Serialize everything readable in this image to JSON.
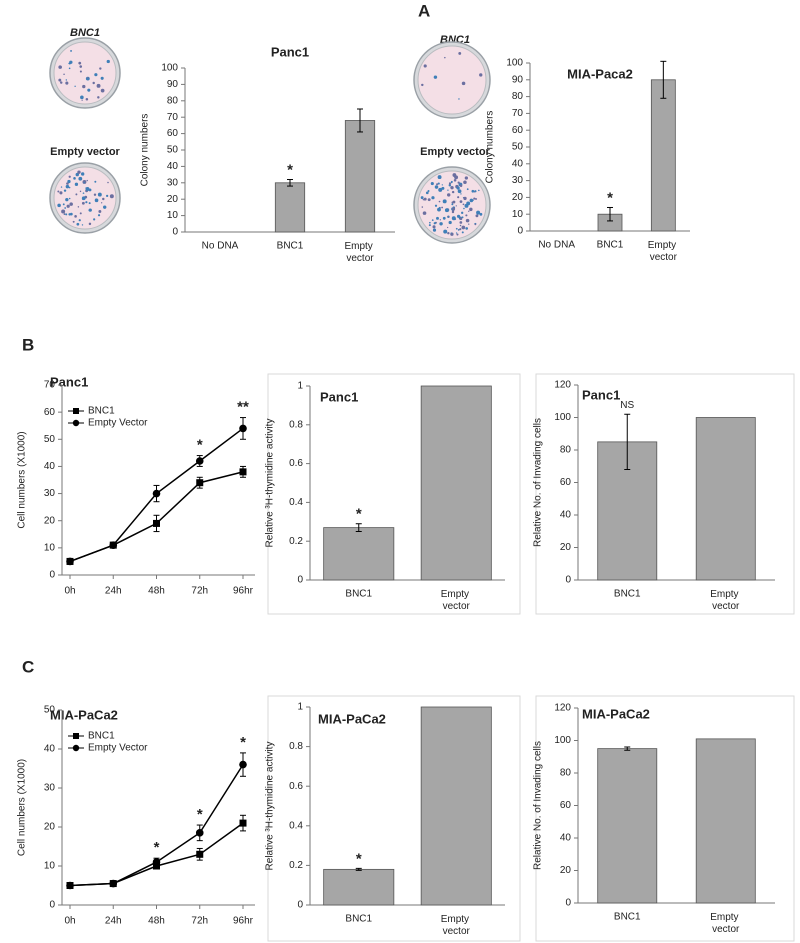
{
  "panels": [
    "A",
    "B",
    "C"
  ],
  "dish_labels": [
    "BNC1",
    "Empty vector",
    "BNC1",
    "Empty vector"
  ],
  "chart_data": [
    {
      "type": "bar",
      "title": "Panc1",
      "y_label": "Colony numbers",
      "categories": [
        "No DNA",
        "BNC1",
        "Empty vector"
      ],
      "values": [
        0,
        30,
        68
      ],
      "errors": [
        0,
        2,
        7
      ],
      "annotations": [
        null,
        "*",
        null
      ],
      "color": "#a6a6a6",
      "ylim": [
        0,
        100
      ],
      "yticks": [
        0,
        10,
        20,
        30,
        40,
        50,
        60,
        70,
        80,
        90,
        100
      ]
    },
    {
      "type": "bar",
      "title": "MIA-Paca2",
      "y_label": "Colony numbers",
      "categories": [
        "No DNA",
        "BNC1",
        "Empty vector"
      ],
      "values": [
        0,
        10,
        90
      ],
      "errors": [
        0,
        4,
        11
      ],
      "annotations": [
        null,
        "*",
        null
      ],
      "color": "#a6a6a6",
      "ylim": [
        0,
        100
      ],
      "yticks": [
        0,
        10,
        20,
        30,
        40,
        50,
        60,
        70,
        80,
        90,
        100
      ]
    },
    {
      "type": "line",
      "title": "Panc1",
      "y_label": "Cell numbers (X1000)",
      "categories": [
        "0h",
        "24h",
        "48h",
        "72h",
        "96hr"
      ],
      "series": [
        {
          "name": "BNC1",
          "color": "#000000",
          "marker": "square",
          "values": [
            5,
            11,
            19,
            34,
            38
          ],
          "errors": [
            1,
            1,
            3,
            2,
            2
          ]
        },
        {
          "name": "Empty Vector",
          "color": "#000000",
          "marker": "circle",
          "values": [
            5,
            11,
            30,
            42,
            54
          ],
          "errors": [
            1,
            1,
            3,
            2,
            4
          ]
        }
      ],
      "annotations": [
        null,
        null,
        null,
        "*",
        "**"
      ],
      "ylim": [
        0,
        70
      ],
      "yticks": [
        0,
        10,
        20,
        30,
        40,
        50,
        60,
        70
      ]
    },
    {
      "type": "bar",
      "title": "Panc1",
      "y_label": "Relative ³H-thymidine activity",
      "categories": [
        "BNC1",
        "Empty vector"
      ],
      "values": [
        0.27,
        1
      ],
      "errors": [
        0.02,
        0
      ],
      "annotations": [
        "*",
        null
      ],
      "color": "#a6a6a6",
      "ylim": [
        0,
        1
      ],
      "yticks": [
        0,
        0.2,
        0.4,
        0.6,
        0.8,
        1
      ]
    },
    {
      "type": "bar",
      "title": "Panc1",
      "y_label": "Relative No. of Invading cells",
      "categories": [
        "BNC1",
        "Empty vector"
      ],
      "values": [
        85,
        100
      ],
      "errors": [
        17,
        0
      ],
      "annotations": [
        "NS",
        null
      ],
      "color": "#a6a6a6",
      "ylim": [
        0,
        120
      ],
      "yticks": [
        0,
        20,
        40,
        60,
        80,
        100,
        120
      ]
    },
    {
      "type": "line",
      "title": "MIA-PaCa2",
      "y_label": "Cell numbers (X1000)",
      "categories": [
        "0h",
        "24h",
        "48h",
        "72h",
        "96hr"
      ],
      "series": [
        {
          "name": "BNC1",
          "color": "#000000",
          "marker": "square",
          "values": [
            5,
            5.5,
            10,
            13,
            21
          ],
          "errors": [
            0.5,
            0.5,
            0.5,
            1.5,
            2
          ]
        },
        {
          "name": "Empty Vector",
          "color": "#000000",
          "marker": "circle",
          "values": [
            5,
            5.5,
            11,
            18.5,
            36
          ],
          "errors": [
            0.5,
            0.5,
            1,
            2,
            3
          ]
        }
      ],
      "annotations": [
        null,
        null,
        "*",
        "*",
        "*"
      ],
      "ylim": [
        0,
        50
      ],
      "yticks": [
        0,
        10,
        20,
        30,
        40,
        50
      ]
    },
    {
      "type": "bar",
      "title": "MIA-PaCa2",
      "y_label": "Relative ³H-thymidine activity",
      "categories": [
        "BNC1",
        "Empty vector"
      ],
      "values": [
        0.18,
        1
      ],
      "errors": [
        0.005,
        0
      ],
      "annotations": [
        "*",
        null
      ],
      "color": "#a6a6a6",
      "ylim": [
        0,
        1
      ],
      "yticks": [
        0,
        0.2,
        0.4,
        0.6,
        0.8,
        1
      ]
    },
    {
      "type": "bar",
      "title": "MIA-PaCa2",
      "y_label": "Relative No. of Invading cells",
      "categories": [
        "BNC1",
        "Empty vector"
      ],
      "values": [
        95,
        101
      ],
      "errors": [
        1,
        0
      ],
      "annotations": [
        null,
        null
      ],
      "color": "#a6a6a6",
      "ylim": [
        0,
        120
      ],
      "yticks": [
        0,
        20,
        40,
        60,
        80,
        100,
        120
      ]
    }
  ]
}
